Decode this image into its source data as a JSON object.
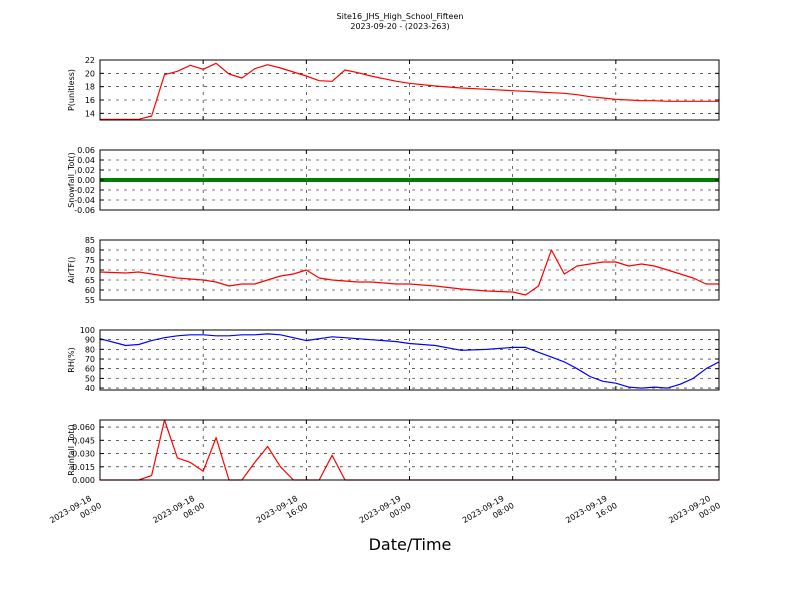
{
  "title": {
    "line1": "Site16_JHS_High_School_Fifteen",
    "line2": "2023-09-20 - (2023-263)"
  },
  "xlabel": "Date/Time",
  "colors": {
    "red": "#ff0000",
    "blue": "#0000ff",
    "green": "#008000"
  },
  "chart_data": {
    "type": "line",
    "xlabel": "Date/Time",
    "xlim": [
      "2023-09-18 00:00",
      "2023-09-20 00:00"
    ],
    "xticks": [
      "2023-09-18 00:00",
      "2023-09-18 08:00",
      "2023-09-18 16:00",
      "2023-09-19 00:00",
      "2023-09-19 08:00",
      "2023-09-19 16:00",
      "2023-09-20 00:00"
    ],
    "grid": true,
    "x": [
      "2023-09-18 00:00",
      "2023-09-18 02:00",
      "2023-09-18 03:00",
      "2023-09-18 04:00",
      "2023-09-18 05:00",
      "2023-09-18 06:00",
      "2023-09-18 07:00",
      "2023-09-18 08:00",
      "2023-09-18 09:00",
      "2023-09-18 10:00",
      "2023-09-18 11:00",
      "2023-09-18 12:00",
      "2023-09-18 13:00",
      "2023-09-18 14:00",
      "2023-09-18 15:00",
      "2023-09-18 16:00",
      "2023-09-18 17:00",
      "2023-09-18 18:00",
      "2023-09-18 19:00",
      "2023-09-18 20:00",
      "2023-09-18 21:00",
      "2023-09-18 22:00",
      "2023-09-18 23:00",
      "2023-09-19 00:00",
      "2023-09-19 02:00",
      "2023-09-19 04:00",
      "2023-09-19 06:00",
      "2023-09-19 08:00",
      "2023-09-19 09:00",
      "2023-09-19 10:00",
      "2023-09-19 11:00",
      "2023-09-19 12:00",
      "2023-09-19 13:00",
      "2023-09-19 14:00",
      "2023-09-19 15:00",
      "2023-09-19 16:00",
      "2023-09-19 17:00",
      "2023-09-19 18:00",
      "2023-09-19 19:00",
      "2023-09-19 20:00",
      "2023-09-19 21:00",
      "2023-09-19 22:00",
      "2023-09-19 23:00",
      "2023-09-20 00:00"
    ],
    "panels": [
      {
        "ylabel": "P(unitless)",
        "ylim": [
          13,
          22
        ],
        "yticks": [
          "14",
          "16",
          "18",
          "20",
          "22"
        ],
        "yticks_values": [
          14,
          16,
          18,
          20,
          22
        ],
        "series": [
          {
            "color": "#ff0000",
            "values": [
              13.1,
              13.1,
              13.1,
              13.6,
              19.8,
              20.3,
              21.2,
              20.6,
              21.5,
              19.9,
              19.3,
              20.7,
              21.3,
              20.8,
              20.2,
              19.6,
              18.9,
              18.8,
              20.5,
              20.1,
              19.6,
              19.2,
              18.8,
              18.5,
              18.1,
              17.8,
              17.6,
              17.4,
              17.3,
              17.2,
              17.1,
              17.0,
              16.8,
              16.5,
              16.3,
              16.1,
              16.0,
              15.9,
              15.9,
              15.8,
              15.8,
              15.8,
              15.8,
              15.8
            ]
          }
        ]
      },
      {
        "ylabel": "Snowfall_Tot()",
        "ylim": [
          -0.06,
          0.06
        ],
        "yticks": [
          "-0.06",
          "-0.04",
          "-0.02",
          "0.00",
          "0.02",
          "0.04",
          "0.06"
        ],
        "yticks_values": [
          -0.06,
          -0.04,
          -0.02,
          0.0,
          0.02,
          0.04,
          0.06
        ],
        "series": [
          {
            "color": "#008000",
            "values": [
              0,
              0,
              0,
              0,
              0,
              0,
              0,
              0,
              0,
              0,
              0,
              0,
              0,
              0,
              0,
              0,
              0,
              0,
              0,
              0,
              0,
              0,
              0,
              0,
              0,
              0,
              0,
              0,
              0,
              0,
              0,
              0,
              0,
              0,
              0,
              0,
              0,
              0,
              0,
              0,
              0,
              0,
              0,
              0
            ]
          }
        ]
      },
      {
        "ylabel": "AirTF()",
        "ylim": [
          55,
          85
        ],
        "yticks": [
          "55",
          "60",
          "65",
          "70",
          "75",
          "80",
          "85"
        ],
        "yticks_values": [
          55,
          60,
          65,
          70,
          75,
          80,
          85
        ],
        "series": [
          {
            "color": "#ff0000",
            "values": [
              69,
              68.5,
              69,
              68,
              67,
              66,
              65.5,
              65,
              64,
              62,
              63,
              63,
              65,
              67,
              68,
              70,
              66,
              65,
              64.5,
              64,
              64,
              63.5,
              63,
              63,
              62,
              60.5,
              59.5,
              59,
              57.5,
              62,
              80,
              68,
              72,
              73,
              74,
              74,
              72,
              73,
              72,
              70,
              68,
              66,
              63,
              63
            ]
          }
        ]
      },
      {
        "ylabel": "RH(%)",
        "ylim": [
          38,
          100
        ],
        "yticks": [
          "40",
          "50",
          "60",
          "70",
          "80",
          "90",
          "100"
        ],
        "yticks_values": [
          40,
          50,
          60,
          70,
          80,
          90,
          100
        ],
        "series": [
          {
            "color": "#0000ff",
            "values": [
              91,
              84,
              85,
              89,
              92,
              94,
              95,
              95,
              94,
              94,
              95,
              95,
              96,
              95,
              92,
              89,
              91,
              93,
              92,
              91,
              90,
              89,
              88,
              86,
              84,
              79,
              80,
              82,
              82,
              77,
              72,
              67,
              60,
              52,
              47,
              45,
              41,
              40,
              41,
              40,
              44,
              50,
              60,
              67
            ]
          }
        ]
      },
      {
        "ylabel": "Rainfall_Tot()",
        "ylim": [
          0,
          0.068
        ],
        "yticks": [
          "0.000",
          "0.015",
          "0.030",
          "0.045",
          "0.060"
        ],
        "yticks_values": [
          0.0,
          0.015,
          0.03,
          0.045,
          0.06
        ],
        "series": [
          {
            "color": "#ff0000",
            "values": [
              0,
              0,
              0,
              0.005,
              0.068,
              0.025,
              0.02,
              0.01,
              0.048,
              0.0,
              0.0,
              0.02,
              0.038,
              0.015,
              0.0,
              0.0,
              0.0,
              0.028,
              0.0,
              0.0,
              0,
              0,
              0,
              0,
              0,
              0,
              0,
              0,
              0,
              0,
              0,
              0,
              0,
              0,
              0,
              0,
              0,
              0,
              0,
              0,
              0,
              0,
              0,
              0
            ]
          }
        ]
      }
    ]
  }
}
